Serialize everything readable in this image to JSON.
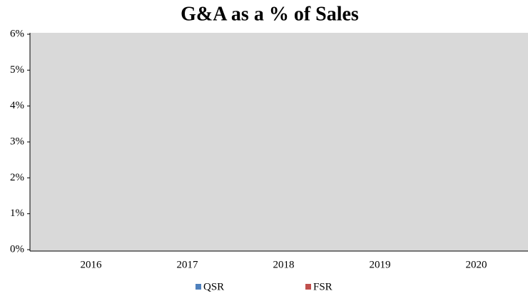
{
  "chart_data": {
    "type": "bar",
    "title": "G&A as a % of Sales",
    "categories": [
      "2016",
      "2017",
      "2018",
      "2019",
      "2020"
    ],
    "series": [
      {
        "name": "QSR",
        "color": "#4f81bd",
        "values": [
          null,
          null,
          null,
          null,
          null
        ]
      },
      {
        "name": "FSR",
        "color": "#c0504d",
        "values": [
          null,
          null,
          null,
          null,
          null
        ]
      }
    ],
    "ylim": [
      0,
      6
    ],
    "yticks": [
      {
        "value": 0,
        "label": "0%"
      },
      {
        "value": 1,
        "label": "1%"
      },
      {
        "value": 2,
        "label": "2%"
      },
      {
        "value": 3,
        "label": "3%"
      },
      {
        "value": 4,
        "label": "4%"
      },
      {
        "value": 5,
        "label": "5%"
      },
      {
        "value": 6,
        "label": "6%"
      }
    ],
    "plot_background": "#d9d9d9"
  }
}
